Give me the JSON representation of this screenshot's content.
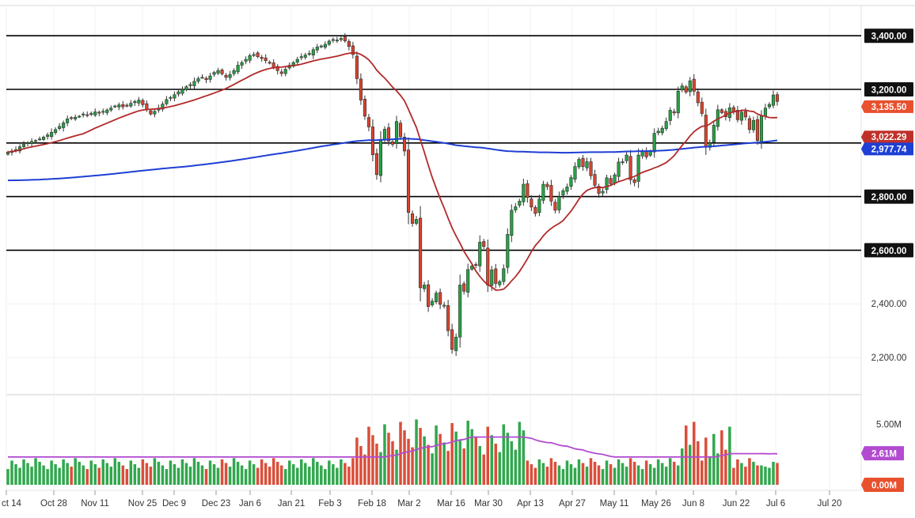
{
  "chart_data": [
    {
      "type": "candlestick",
      "title": "",
      "price_axis": {
        "range": [
          2140,
          3450
        ],
        "ticks": [
          "3,400.00",
          "3,200.00",
          "2,400.00",
          "2,200.00"
        ],
        "tick_values": [
          3400,
          3200,
          2400,
          2200
        ]
      },
      "horizontal_levels": [
        {
          "value": 3400,
          "label": "3,400.00"
        },
        {
          "value": 3200,
          "label": "3,200.00"
        },
        {
          "value": 3000,
          "label": ""
        },
        {
          "value": 2800,
          "label": "2,800.00"
        },
        {
          "value": 2600,
          "label": "2,600.00"
        }
      ],
      "price_badges": [
        {
          "value": 3135.5,
          "label": "3,135.50",
          "color": "#e8502e"
        },
        {
          "value": 3022.29,
          "label": "3,022.29",
          "color": "#c0302a"
        },
        {
          "value": 2977.74,
          "label": "2,977.74",
          "color": "#1e3fd4"
        }
      ],
      "up_color": "#27a244",
      "down_color": "#d9452f",
      "ma_fast_color": "#b22a2a",
      "ma_slow_color": "#1e3fd4",
      "date_axis": [
        "ct 14",
        "Oct 28",
        "Nov 11",
        "Nov 25",
        "Dec 9",
        "Dec 23",
        "Jan 6",
        "Jan 21",
        "Feb 3",
        "Feb 18",
        "Mar 2",
        "Mar 16",
        "Mar 30",
        "Apr 13",
        "Apr 27",
        "May 11",
        "May 26",
        "Jun 8",
        "Jun 22",
        "Jul 6",
        "Jul 20"
      ],
      "close_series": [
        2966,
        2970,
        2975,
        2986,
        2995,
        3001,
        3006,
        3009,
        3015,
        3022,
        3030,
        3040,
        3050,
        3062,
        3075,
        3090,
        3093,
        3096,
        3100,
        3108,
        3105,
        3110,
        3116,
        3112,
        3118,
        3123,
        3130,
        3138,
        3142,
        3135,
        3140,
        3148,
        3155,
        3160,
        3143,
        3125,
        3108,
        3118,
        3130,
        3145,
        3162,
        3170,
        3180,
        3191,
        3200,
        3210,
        3218,
        3230,
        3240,
        3245,
        3236,
        3250,
        3263,
        3270,
        3258,
        3245,
        3255,
        3270,
        3290,
        3300,
        3312,
        3326,
        3330,
        3322,
        3315,
        3307,
        3300,
        3282,
        3270,
        3259,
        3275,
        3290,
        3300,
        3312,
        3322,
        3328,
        3334,
        3348,
        3358,
        3362,
        3368,
        3380,
        3386,
        3384,
        3390,
        3381,
        3360,
        3330,
        3240,
        3160,
        3100,
        3060,
        2956,
        2882,
        3013,
        3051,
        3007,
        2995,
        3080,
        3023,
        2970,
        2741,
        2700,
        2715,
        2460,
        2470,
        2390,
        2410,
        2440,
        2398,
        2395,
        2300,
        2230,
        2276,
        2470,
        2447,
        2528,
        2541,
        2544,
        2630,
        2614,
        2470,
        2527,
        2476,
        2483,
        2531,
        2659,
        2749,
        2762,
        2783,
        2846,
        2797,
        2761,
        2737,
        2791,
        2846,
        2837,
        2783,
        2749,
        2800,
        2822,
        2836,
        2871,
        2912,
        2939,
        2912,
        2930,
        2878,
        2842,
        2812,
        2820,
        2870,
        2848,
        2881,
        2929,
        2930,
        2955,
        2863,
        2852,
        2955,
        2970,
        2948,
        2969,
        3036,
        3044,
        3055,
        3080,
        3122,
        3112,
        3193,
        3213,
        3190,
        3232,
        3193,
        3150,
        3110,
        2985,
        3000,
        3066,
        3124,
        3113,
        3098,
        3131,
        3116,
        3087,
        3115,
        3097,
        3050,
        3084,
        3009,
        3100,
        3130,
        3144,
        3179,
        3155
      ],
      "volume_axis": {
        "ticks": [
          "5.00M"
        ],
        "tick_values": [
          5.0
        ],
        "range": [
          0,
          6.5
        ]
      },
      "volume_badges": [
        {
          "value": 2.61,
          "label": "2.61M",
          "color": "#b24bd0"
        },
        {
          "value": 0,
          "label": "0.00M",
          "color": "#e8502e"
        }
      ],
      "volume_ma_color": "#b24bd0"
    }
  ]
}
